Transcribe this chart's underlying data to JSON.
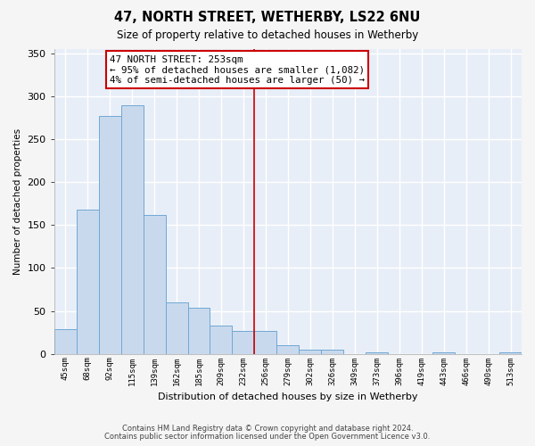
{
  "title": "47, NORTH STREET, WETHERBY, LS22 6NU",
  "subtitle": "Size of property relative to detached houses in Wetherby",
  "xlabel": "Distribution of detached houses by size in Wetherby",
  "ylabel": "Number of detached properties",
  "bar_labels": [
    "45sqm",
    "68sqm",
    "92sqm",
    "115sqm",
    "139sqm",
    "162sqm",
    "185sqm",
    "209sqm",
    "232sqm",
    "256sqm",
    "279sqm",
    "302sqm",
    "326sqm",
    "349sqm",
    "373sqm",
    "396sqm",
    "419sqm",
    "443sqm",
    "466sqm",
    "490sqm",
    "513sqm"
  ],
  "bar_values": [
    29,
    168,
    277,
    290,
    162,
    60,
    54,
    33,
    27,
    27,
    10,
    5,
    5,
    0,
    2,
    0,
    0,
    2,
    0,
    0,
    2
  ],
  "bar_color": "#c9d9ed",
  "bar_edge_color": "#6fa8d6",
  "annotation_title": "47 NORTH STREET: 253sqm",
  "annotation_line1": "← 95% of detached houses are smaller (1,082)",
  "annotation_line2": "4% of semi-detached houses are larger (50) →",
  "vline_position": 8.5,
  "vline_color": "#cc0000",
  "footnote1": "Contains HM Land Registry data © Crown copyright and database right 2024.",
  "footnote2": "Contains public sector information licensed under the Open Government Licence v3.0.",
  "ylim": [
    0,
    355
  ],
  "plot_bg_color": "#e8eef7",
  "fig_bg_color": "#f5f5f5",
  "grid_color": "#ffffff"
}
